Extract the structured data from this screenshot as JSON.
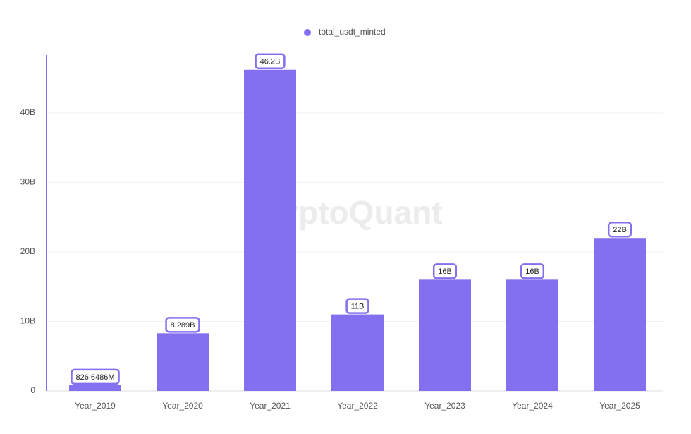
{
  "chart_data": {
    "type": "bar",
    "watermark": "CryptoQuant",
    "legend": "total_usdt_minted",
    "color": "#8270f0",
    "categories": [
      "Year_2019",
      "Year_2020",
      "Year_2021",
      "Year_2022",
      "Year_2023",
      "Year_2024",
      "Year_2025"
    ],
    "values": [
      826648600,
      8289000000,
      46200000000,
      11000000000,
      16000000000,
      16000000000,
      22000000000
    ],
    "value_labels": [
      "826.6486M",
      "8.289B",
      "46.2B",
      "11B",
      "16B",
      "16B",
      "22B"
    ],
    "ylim": [
      0,
      48000000000
    ],
    "yticks": [
      0,
      {
        "value": 10000000000,
        "label": "10B"
      },
      {
        "value": 20000000000,
        "label": "20B"
      },
      {
        "value": 30000000000,
        "label": "30B"
      },
      {
        "value": 40000000000,
        "label": "40B"
      }
    ],
    "grid": true
  }
}
